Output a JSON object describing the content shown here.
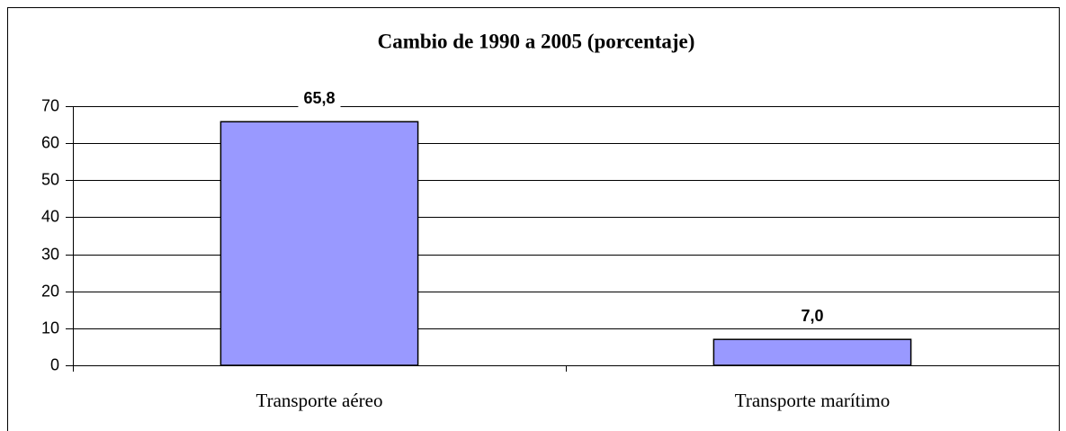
{
  "chart_data": {
    "type": "bar",
    "title": "Cambio de 1990 a 2005 (porcentaje)",
    "categories": [
      "Transporte aéreo",
      "Transporte marítimo"
    ],
    "values": [
      65.8,
      7.0
    ],
    "value_labels": [
      "65,8",
      "7,0"
    ],
    "color": "#9999ff",
    "ylim": [
      0,
      70
    ],
    "yticks": [
      0,
      10,
      20,
      30,
      40,
      50,
      60,
      70
    ],
    "grid": true
  }
}
